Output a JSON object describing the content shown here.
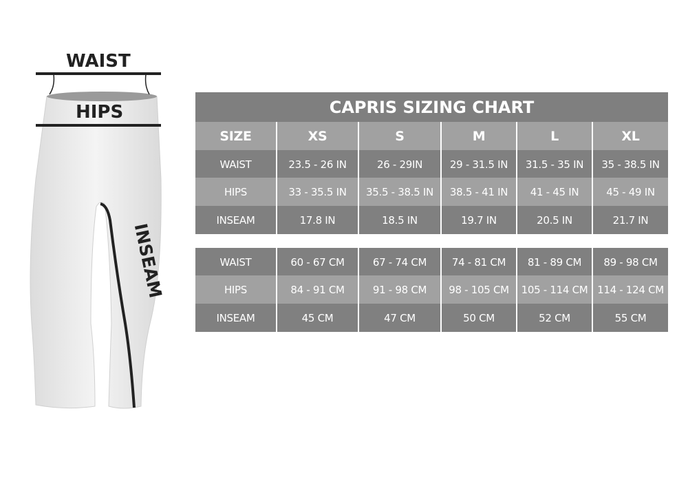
{
  "illustration": {
    "labels": {
      "waist": "WAIST",
      "hips": "HIPS",
      "inseam": "INSEAM"
    }
  },
  "colors": {
    "dark_row": "#808080",
    "light_row": "#a1a1a1",
    "text": "#ffffff",
    "line": "#222222"
  },
  "chart_data": {
    "type": "table",
    "title": "CAPRIS SIZING CHART",
    "columns": [
      "SIZE",
      "XS",
      "S",
      "M",
      "L",
      "XL"
    ],
    "inches": [
      [
        "WAIST",
        "23.5 - 26 IN",
        "26 - 29IN",
        "29 - 31.5 IN",
        "31.5 - 35 IN",
        "35 - 38.5 IN"
      ],
      [
        "HIPS",
        "33 - 35.5 IN",
        "35.5 - 38.5 IN",
        "38.5 - 41 IN",
        "41 - 45 IN",
        "45 - 49 IN"
      ],
      [
        "INSEAM",
        "17.8 IN",
        "18.5 IN",
        "19.7 IN",
        "20.5 IN",
        "21.7 IN"
      ]
    ],
    "centimeters": [
      [
        "WAIST",
        "60 - 67 CM",
        "67 - 74 CM",
        "74 - 81 CM",
        "81 - 89 CM",
        "89 - 98 CM"
      ],
      [
        "HIPS",
        "84 - 91 CM",
        "91 - 98 CM",
        "98 - 105 CM",
        "105 - 114 CM",
        "114 - 124 CM"
      ],
      [
        "INSEAM",
        "45 CM",
        "47 CM",
        "50 CM",
        "52 CM",
        "55 CM"
      ]
    ]
  }
}
